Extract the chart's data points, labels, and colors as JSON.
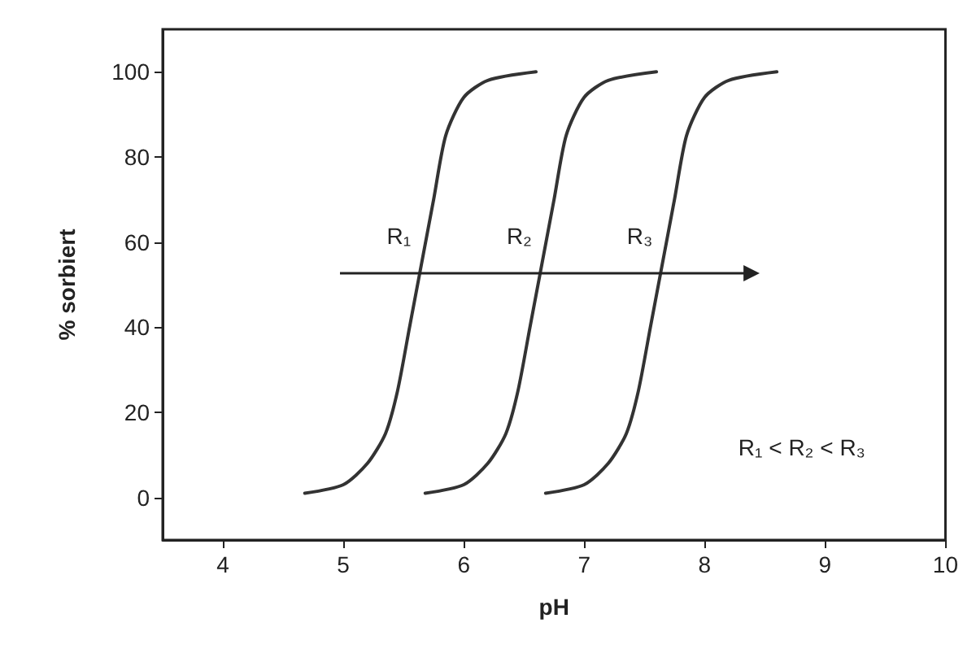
{
  "chart_data": {
    "type": "line",
    "xlabel": "pH",
    "ylabel": "% sorbiert",
    "xlim": [
      3.5,
      10
    ],
    "ylim": [
      -10,
      110
    ],
    "xticks": [
      4,
      5,
      6,
      7,
      8,
      9,
      10
    ],
    "yticks": [
      0,
      20,
      40,
      60,
      80,
      100
    ],
    "grid": false,
    "marker": "none",
    "line_style": "solid",
    "series": [
      {
        "color": "#333333",
        "x": [
          4.68,
          5.0,
          5.2,
          5.35,
          5.45,
          5.55,
          5.65,
          5.75,
          5.85,
          6.0,
          6.2,
          6.6
        ],
        "values": [
          1,
          3,
          8,
          15,
          25,
          40,
          55,
          70,
          85,
          94,
          98,
          100
        ]
      },
      {
        "color": "#333333",
        "x": [
          5.68,
          6.0,
          6.2,
          6.35,
          6.45,
          6.55,
          6.65,
          6.75,
          6.85,
          7.0,
          7.2,
          7.6
        ],
        "values": [
          1,
          3,
          8,
          15,
          25,
          40,
          55,
          70,
          85,
          94,
          98,
          100
        ]
      },
      {
        "color": "#333333",
        "x": [
          6.68,
          7.0,
          7.2,
          7.35,
          7.45,
          7.55,
          7.65,
          7.75,
          7.85,
          8.0,
          8.2,
          8.6
        ],
        "values": [
          1,
          3,
          8,
          15,
          25,
          40,
          55,
          70,
          85,
          94,
          98,
          100
        ]
      }
    ],
    "annotations": [
      "R₁",
      "R₂",
      "R₃",
      "R₁ < R₂ < R₃"
    ]
  }
}
